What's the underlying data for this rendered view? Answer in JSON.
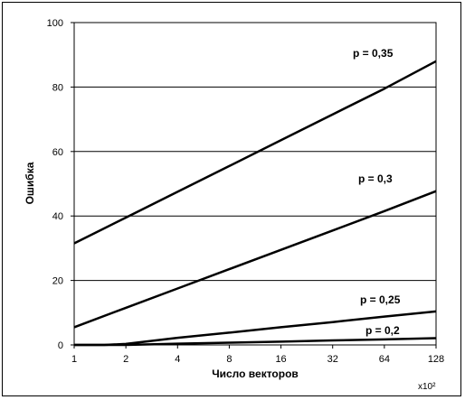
{
  "chart_data": {
    "type": "line",
    "xlabel": "Число векторов",
    "ylabel": "Ошибка",
    "x_unit_label": "x10²",
    "x_scale": "log2",
    "xlim": [
      1,
      128
    ],
    "ylim": [
      0,
      100
    ],
    "grid": "horizontal",
    "x_ticks": [
      1,
      2,
      4,
      8,
      16,
      32,
      64,
      128
    ],
    "y_ticks": [
      0,
      20,
      40,
      60,
      80,
      100
    ],
    "series": [
      {
        "name": "p = 0,35",
        "x": [
          1,
          2,
          4,
          8,
          16,
          32,
          64,
          128
        ],
        "values": [
          31.5,
          39.5,
          47.5,
          55.5,
          63.5,
          71.5,
          79.5,
          88
        ]
      },
      {
        "name": "p = 0,3",
        "x": [
          1,
          2,
          4,
          8,
          16,
          32,
          64,
          128
        ],
        "values": [
          5.5,
          11.5,
          17.5,
          23.5,
          29.5,
          35.5,
          41.5,
          47.7
        ]
      },
      {
        "name": "p = 0,25",
        "x": [
          1,
          1.5,
          2,
          4,
          8,
          16,
          32,
          64,
          128
        ],
        "values": [
          0,
          0,
          0.3,
          2.2,
          3.8,
          5.5,
          7.1,
          8.8,
          10.4
        ]
      },
      {
        "name": "p = 0,2",
        "x": [
          1,
          1.5,
          2,
          4,
          8,
          16,
          32,
          64,
          128
        ],
        "values": [
          0,
          0,
          0,
          0.4,
          0.7,
          1.0,
          1.4,
          1.7,
          2.1
        ]
      }
    ]
  }
}
